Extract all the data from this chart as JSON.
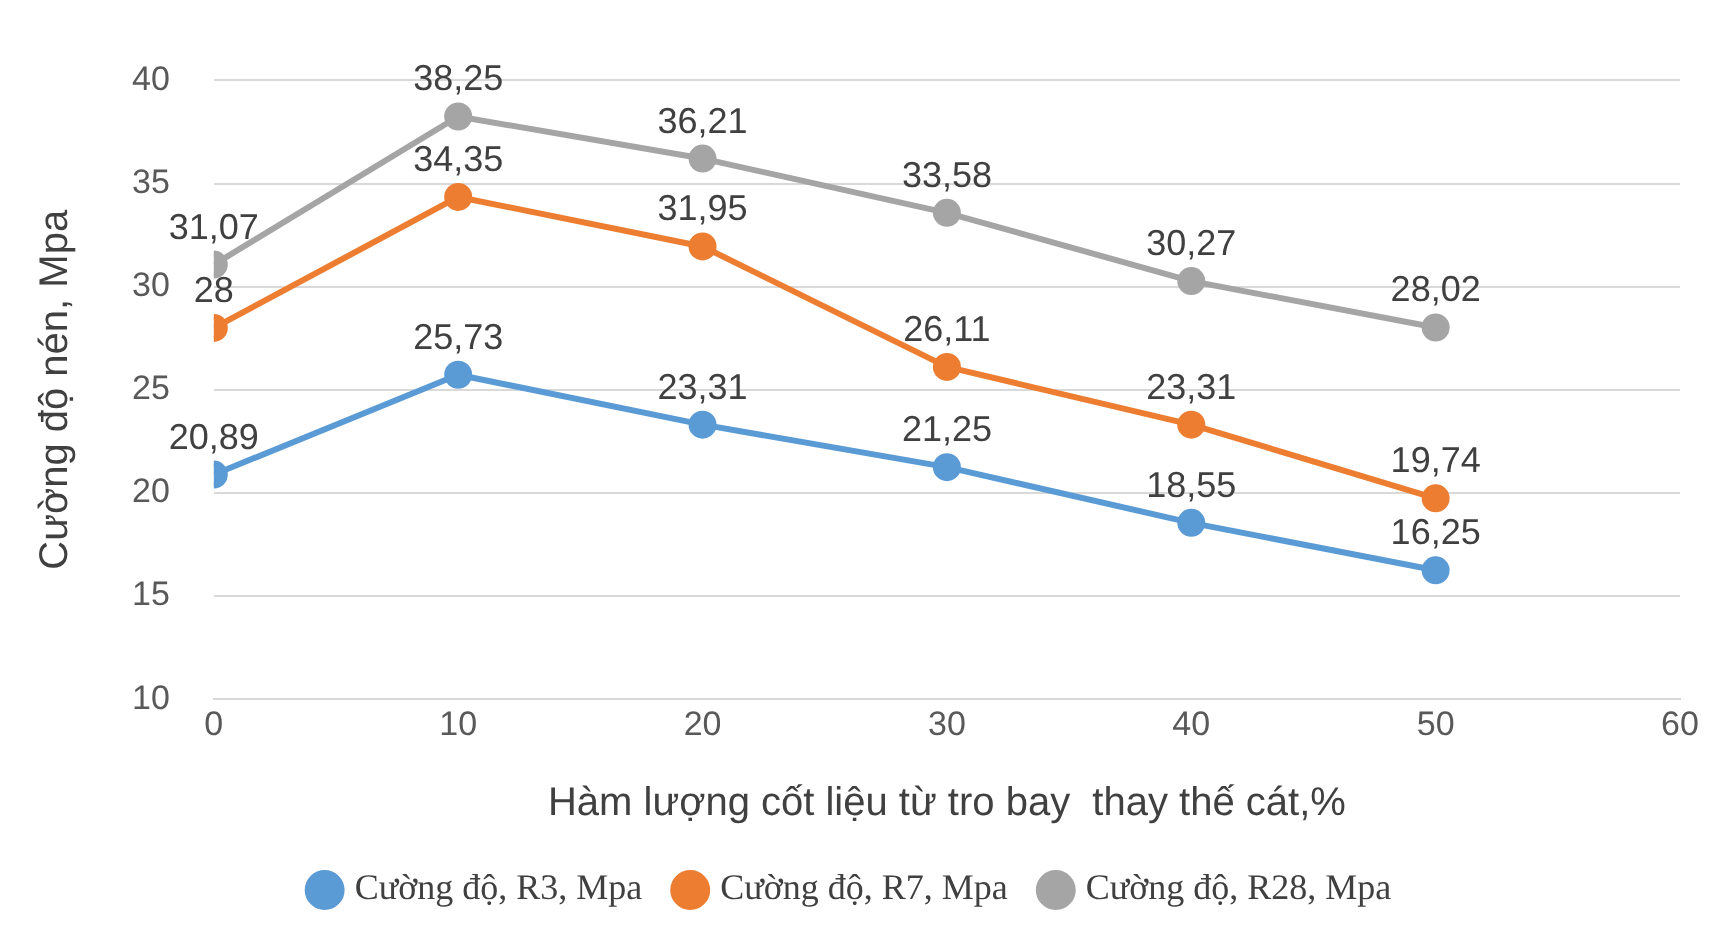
{
  "chart_data": {
    "type": "line",
    "xlabel": "Hàm lượng cốt liệu từ tro bay  thay thế cát,%",
    "ylabel": "Cường độ nén, Mpa",
    "x": [
      0,
      10,
      20,
      30,
      40,
      50
    ],
    "xlim": [
      0,
      60
    ],
    "xticks": [
      0,
      10,
      20,
      30,
      40,
      50,
      60
    ],
    "ylim": [
      10,
      40
    ],
    "yticks": [
      10,
      15,
      20,
      25,
      30,
      35,
      40
    ],
    "grid": "y",
    "legend": "bottom",
    "marker": "circle",
    "line_style": "solid",
    "series": [
      {
        "name": "Cường độ, R3, Mpa",
        "color": "#5b9bd5",
        "values": [
          20.89,
          25.73,
          23.31,
          21.25,
          18.55,
          16.25
        ],
        "value_labels": [
          "20,89",
          "25,73",
          "23,31",
          "21,25",
          "18,55",
          "16,25"
        ]
      },
      {
        "name": "Cường độ, R7, Mpa",
        "color": "#ed7d31",
        "values": [
          28,
          34.35,
          31.95,
          26.11,
          23.31,
          19.74
        ],
        "value_labels": [
          "28",
          "34,35",
          "31,95",
          "26,11",
          "23,31",
          "19,74"
        ]
      },
      {
        "name": "Cường độ, R28, Mpa",
        "color": "#a5a5a5",
        "values": [
          31.07,
          38.25,
          36.21,
          33.58,
          30.27,
          28.02
        ],
        "value_labels": [
          "31,07",
          "38,25",
          "36,21",
          "33,58",
          "30,27",
          "28,02"
        ]
      }
    ]
  }
}
